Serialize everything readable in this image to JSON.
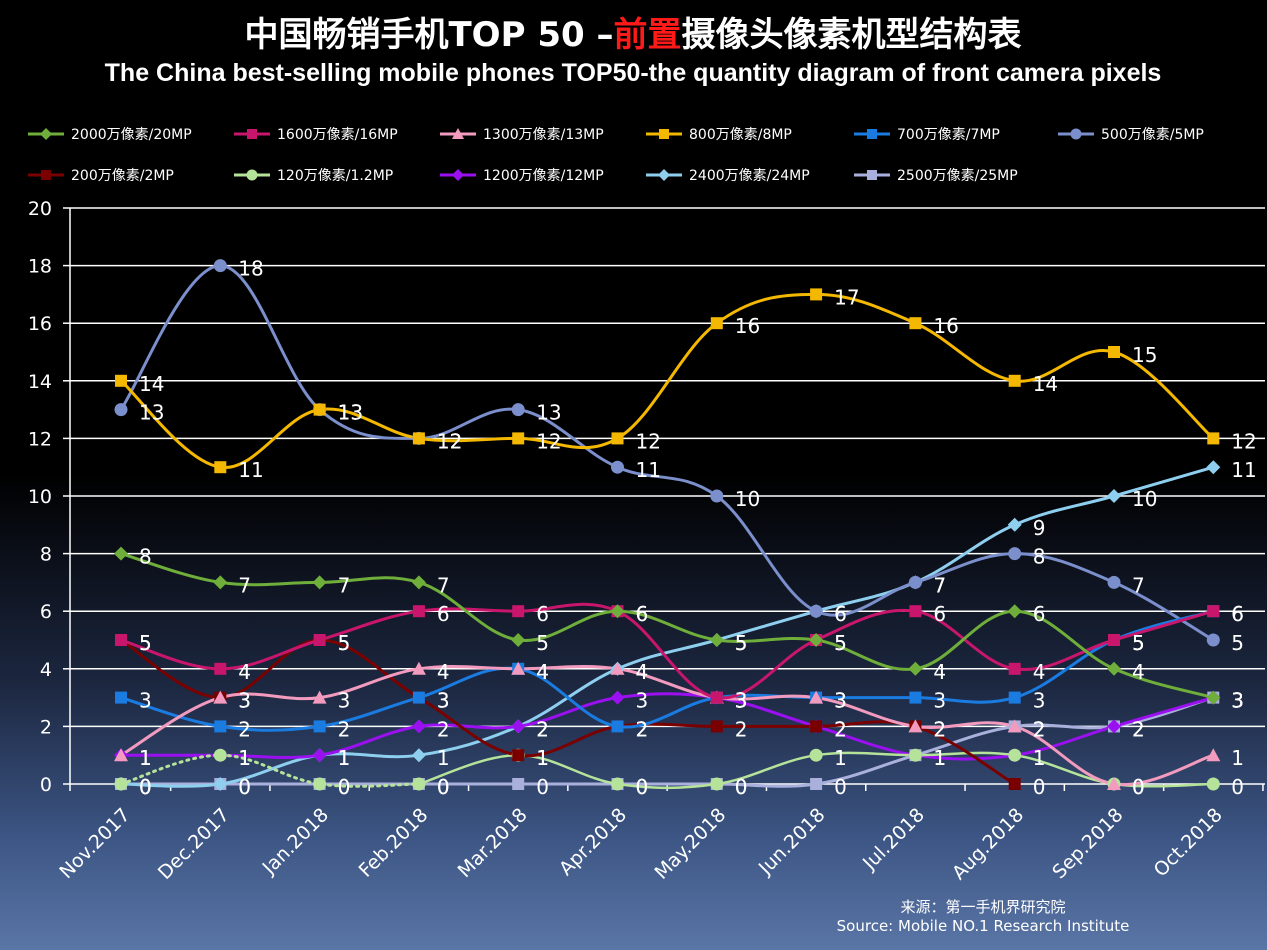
{
  "chart_data": {
    "type": "line",
    "title_cn_parts": [
      "中国畅销手机TOP 50 –",
      "前置",
      "摄像头像素机型结构表"
    ],
    "title_en": "The China best-selling mobile phones TOP50-the quantity diagram of front camera pixels",
    "categories": [
      "Nov.2017",
      "Dec.2017",
      "Jan.2018",
      "Feb.2018",
      "Mar.2018",
      "Apr.2018",
      "May.2018",
      "Jun.2018",
      "Jul.2018",
      "Aug.2018",
      "Sep.2018",
      "Oct.2018"
    ],
    "ylim": [
      0,
      20
    ],
    "yticks": [
      "0",
      "2",
      "4",
      "6",
      "8",
      "10",
      "12",
      "14",
      "16",
      "18",
      "20"
    ],
    "grid": true,
    "legend_position": "top",
    "series": [
      {
        "name": "2000万像素/20MP",
        "color": "#6fae3a",
        "marker": "diamond",
        "values": [
          8,
          7,
          7,
          7,
          5,
          6,
          5,
          5,
          4,
          6,
          4,
          3
        ]
      },
      {
        "name": "1600万像素/16MP",
        "color": "#c8166c",
        "marker": "square",
        "values": [
          5,
          4,
          5,
          6,
          6,
          6,
          3,
          5,
          6,
          4,
          5,
          6
        ]
      },
      {
        "name": "1300万像素/13MP",
        "color": "#f29bbf",
        "marker": "triangle",
        "values": [
          1,
          3,
          3,
          4,
          4,
          4,
          3,
          3,
          2,
          2,
          0,
          1
        ]
      },
      {
        "name": "800万像素/8MP",
        "color": "#f5b800",
        "marker": "square",
        "values": [
          14,
          11,
          13,
          12,
          12,
          12,
          16,
          17,
          16,
          14,
          15,
          12
        ]
      },
      {
        "name": "700万像素/7MP",
        "color": "#1a7be0",
        "marker": "square",
        "values": [
          3,
          2,
          2,
          3,
          4,
          2,
          3,
          3,
          3,
          3,
          5,
          6
        ]
      },
      {
        "name": "500万像素/5MP",
        "color": "#7b8fcc",
        "marker": "circle",
        "values": [
          13,
          18,
          13,
          12,
          13,
          11,
          10,
          6,
          7,
          8,
          7,
          5
        ]
      },
      {
        "name": "200万像素/2MP",
        "color": "#7a0000",
        "marker": "square",
        "values": [
          5,
          3,
          5,
          3,
          1,
          2,
          2,
          2,
          2,
          0,
          null,
          null
        ]
      },
      {
        "name": "120万像素/1.2MP",
        "color": "#b6e39a",
        "marker": "circle",
        "values": [
          0,
          1,
          0,
          0,
          1,
          0,
          0,
          1,
          1,
          1,
          0,
          0
        ]
      },
      {
        "name": "1200万像素/12MP",
        "color": "#9b10f0",
        "marker": "diamond",
        "values": [
          1,
          1,
          1,
          2,
          2,
          3,
          3,
          2,
          1,
          1,
          2,
          3
        ]
      },
      {
        "name": "2400万像素/24MP",
        "color": "#8ecfef",
        "marker": "diamond",
        "values": [
          0,
          0,
          1,
          1,
          2,
          4,
          5,
          6,
          7,
          9,
          10,
          11
        ]
      },
      {
        "name": "2500万像素/25MP",
        "color": "#aab0dc",
        "marker": "square",
        "values": [
          0,
          0,
          0,
          0,
          0,
          0,
          0,
          0,
          1,
          2,
          2,
          3
        ]
      }
    ],
    "source_cn": "来源：第一手机界研究院",
    "source_en": "Source: Mobile NO.1 Research Institute"
  }
}
